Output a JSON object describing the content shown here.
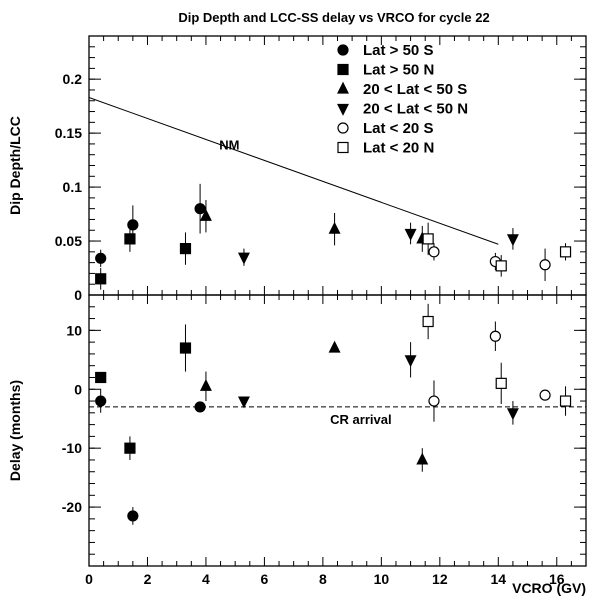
{
  "chart_data": {
    "title": "Dip Depth and LCC-SS delay vs VRCO for cycle 22",
    "xlabel": "VCRO (GV)",
    "xlim": [
      0,
      17
    ],
    "x_ticks": [
      0,
      2,
      4,
      6,
      8,
      10,
      12,
      14,
      16
    ],
    "legend_position": "top-right",
    "legend": [
      {
        "marker": "filled-circle",
        "label": "Lat > 50 S"
      },
      {
        "marker": "filled-square",
        "label": "Lat > 50 N"
      },
      {
        "marker": "filled-triangle-up",
        "label": "20 < Lat < 50 S"
      },
      {
        "marker": "filled-triangle-down",
        "label": "20 < Lat < 50 N"
      },
      {
        "marker": "open-circle",
        "label": "Lat < 20 S"
      },
      {
        "marker": "open-square",
        "label": "Lat < 20 N"
      }
    ],
    "panels": [
      {
        "type": "scatter",
        "ylabel": "Dip Depth/LCC",
        "ylim": [
          0,
          0.24
        ],
        "y_ticks": [
          0,
          0.05,
          0.1,
          0.15,
          0.2
        ],
        "y_tick_labels": [
          "0",
          "0.05",
          "0.1",
          "0.15",
          "0.2"
        ],
        "reference_line": {
          "label": "NM",
          "x": [
            0,
            14
          ],
          "y": [
            0.183,
            0.047
          ]
        },
        "series": [
          {
            "marker": "filled-circle",
            "points": [
              {
                "x": 0.4,
                "y": 0.034,
                "err": 0.008
              },
              {
                "x": 1.5,
                "y": 0.065,
                "err": 0.018
              },
              {
                "x": 3.8,
                "y": 0.08,
                "err": 0.023
              }
            ]
          },
          {
            "marker": "filled-square",
            "points": [
              {
                "x": 0.4,
                "y": 0.015,
                "err": 0.01
              },
              {
                "x": 1.4,
                "y": 0.052,
                "err": 0.012
              },
              {
                "x": 3.3,
                "y": 0.043,
                "err": 0.015
              }
            ]
          },
          {
            "marker": "filled-triangle-up",
            "points": [
              {
                "x": 4.0,
                "y": 0.073,
                "err": 0.015
              },
              {
                "x": 8.4,
                "y": 0.061,
                "err": 0.015
              },
              {
                "x": 11.4,
                "y": 0.052,
                "err": 0.012
              }
            ]
          },
          {
            "marker": "filled-triangle-down",
            "points": [
              {
                "x": 5.3,
                "y": 0.035,
                "err": 0.008
              },
              {
                "x": 11.0,
                "y": 0.057,
                "err": 0.01
              },
              {
                "x": 14.5,
                "y": 0.052,
                "err": 0.01
              }
            ]
          },
          {
            "marker": "open-circle",
            "points": [
              {
                "x": 11.8,
                "y": 0.04,
                "err": 0.008
              },
              {
                "x": 13.9,
                "y": 0.031,
                "err": 0.008
              },
              {
                "x": 15.6,
                "y": 0.028,
                "err": 0.015
              }
            ]
          },
          {
            "marker": "open-square",
            "points": [
              {
                "x": 11.6,
                "y": 0.052,
                "err": 0.015
              },
              {
                "x": 14.1,
                "y": 0.027,
                "err": 0.01
              },
              {
                "x": 16.3,
                "y": 0.04,
                "err": 0.008
              }
            ]
          }
        ]
      },
      {
        "type": "scatter",
        "ylabel": "Delay (months)",
        "ylim": [
          -30,
          16
        ],
        "y_ticks": [
          -20,
          -10,
          0,
          10
        ],
        "y_tick_labels": [
          "-20",
          "-10",
          "0",
          "10"
        ],
        "reference_line": {
          "label": "CR arrival",
          "y": -3,
          "style": "dashed"
        },
        "series": [
          {
            "marker": "filled-circle",
            "points": [
              {
                "x": 0.4,
                "y": -2,
                "err": 2
              },
              {
                "x": 1.5,
                "y": -21.5,
                "err": 1.5
              },
              {
                "x": 3.8,
                "y": -3,
                "err": 0
              }
            ]
          },
          {
            "marker": "filled-square",
            "points": [
              {
                "x": 0.4,
                "y": 2,
                "err": 0
              },
              {
                "x": 1.4,
                "y": -10,
                "err": 2
              },
              {
                "x": 3.3,
                "y": 7,
                "err": 4
              }
            ]
          },
          {
            "marker": "filled-triangle-up",
            "points": [
              {
                "x": 4.0,
                "y": 0.5,
                "err": 2.5
              },
              {
                "x": 8.4,
                "y": 7,
                "err": 0
              },
              {
                "x": 11.4,
                "y": -12,
                "err": 2
              }
            ]
          },
          {
            "marker": "filled-triangle-down",
            "points": [
              {
                "x": 5.3,
                "y": -2,
                "err": 0
              },
              {
                "x": 11.0,
                "y": 5,
                "err": 3
              },
              {
                "x": 14.5,
                "y": -4,
                "err": 2
              }
            ]
          },
          {
            "marker": "open-circle",
            "points": [
              {
                "x": 11.8,
                "y": -2,
                "err": 3.5
              },
              {
                "x": 13.9,
                "y": 9,
                "err": 2.5
              },
              {
                "x": 15.6,
                "y": -1,
                "err": 0
              }
            ]
          },
          {
            "marker": "open-square",
            "points": [
              {
                "x": 11.6,
                "y": 11.5,
                "err": 3
              },
              {
                "x": 14.1,
                "y": 1,
                "err": 3.5
              },
              {
                "x": 16.3,
                "y": -2,
                "err": 2.5
              }
            ]
          }
        ]
      }
    ]
  }
}
